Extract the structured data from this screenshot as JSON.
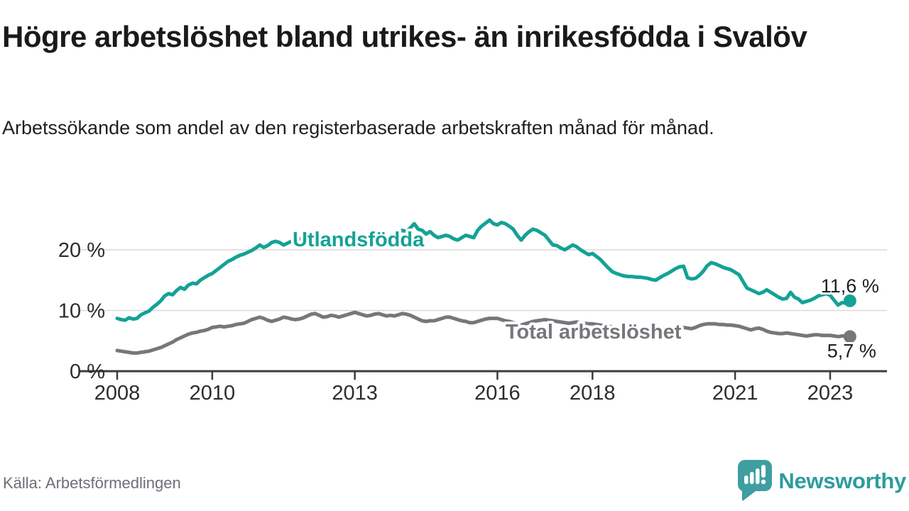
{
  "header": {
    "title": "Högre arbetslöshet bland utrikes- än inrikesfödda i Svalöv",
    "subtitle": "Arbetssökande som andel av den registerbaserade arbetskraften månad för månad."
  },
  "footer": {
    "source": "Källa: Arbetsförmedlingen",
    "logo_text": "Newsworthy",
    "logo_icon": "speech-bubble-bar-chart-icon",
    "logo_color": "#3f9ea0",
    "logo_text_color": "#2d9c9e"
  },
  "colors": {
    "series_foreign": "#14a296",
    "series_total": "#76767c",
    "axis": "#3c3c3c",
    "gridline": "#d9d9d9",
    "tick_label": "#2d2d2d",
    "value_label": "#1f1f1f",
    "halo": "#ffffff"
  },
  "chart_data": {
    "type": "line",
    "title": "Högre arbetslöshet bland utrikes- än inrikesfödda i Svalöv",
    "xlabel": "",
    "ylabel": "Arbetssökande som andel av den registerbaserade arbetskraften",
    "x_start_year": 2008,
    "x_step_months": 1,
    "x_end_approx": "2023-06",
    "xlim": [
      2007.95,
      2024.2
    ],
    "ylim": [
      0,
      27
    ],
    "grid": "horizontal-only",
    "legend_position": "inline-labels",
    "x_ticks": [
      2008,
      2010,
      2013,
      2016,
      2018,
      2021,
      2023
    ],
    "y_ticks": [
      {
        "value": 0,
        "label": "0 %"
      },
      {
        "value": 10,
        "label": "10 %"
      },
      {
        "value": 20,
        "label": "20 %"
      }
    ],
    "series": [
      {
        "name": "Utlandsfödda",
        "color": "#14a296",
        "end_label": "11,6 %",
        "inline_label": {
          "text": "Utlandsfödda",
          "x_year": 2011.69,
          "y_pct": 20.6
        },
        "values": [
          8.7,
          8.5,
          8.4,
          8.8,
          8.6,
          8.7,
          9.3,
          9.6,
          9.9,
          10.5,
          11.0,
          11.6,
          12.4,
          12.8,
          12.6,
          13.3,
          13.8,
          13.5,
          14.2,
          14.5,
          14.4,
          15.0,
          15.4,
          15.8,
          16.1,
          16.6,
          17.1,
          17.6,
          18.1,
          18.4,
          18.8,
          19.1,
          19.3,
          19.6,
          19.9,
          20.3,
          20.8,
          20.4,
          20.7,
          21.2,
          21.4,
          21.2,
          20.8,
          21.1,
          21.4,
          21.6,
          21.8,
          22.0,
          22.2,
          21.8,
          21.6,
          21.1,
          20.9,
          21.2,
          21.6,
          21.4,
          21.2,
          21.5,
          21.7,
          21.5,
          21.8,
          22.0,
          22.3,
          22.1,
          22.6,
          23.0,
          22.6,
          22.3,
          22.1,
          22.3,
          22.6,
          22.9,
          23.2,
          23.0,
          23.6,
          24.3,
          23.4,
          23.2,
          22.6,
          23.0,
          22.4,
          22.0,
          22.2,
          22.4,
          22.2,
          21.8,
          21.6,
          22.0,
          22.4,
          22.2,
          22.0,
          23.2,
          23.9,
          24.4,
          24.9,
          24.3,
          24.1,
          24.5,
          24.3,
          23.9,
          23.4,
          22.4,
          21.6,
          22.4,
          23.0,
          23.4,
          23.2,
          22.8,
          22.4,
          21.6,
          20.8,
          20.7,
          20.3,
          20.0,
          20.4,
          20.8,
          20.5,
          20.0,
          19.6,
          19.2,
          19.4,
          18.9,
          18.4,
          17.7,
          17.0,
          16.4,
          16.1,
          15.9,
          15.7,
          15.6,
          15.6,
          15.5,
          15.5,
          15.4,
          15.3,
          15.1,
          15.0,
          15.4,
          15.8,
          16.1,
          16.5,
          16.9,
          17.2,
          17.3,
          15.4,
          15.2,
          15.3,
          15.8,
          16.5,
          17.4,
          17.9,
          17.7,
          17.4,
          17.1,
          16.9,
          16.7,
          16.3,
          15.9,
          14.8,
          13.7,
          13.4,
          13.1,
          12.8,
          13.0,
          13.4,
          13.0,
          12.6,
          12.2,
          11.9,
          12.0,
          13.0,
          12.2,
          11.9,
          11.3,
          11.5,
          11.7,
          12.0,
          12.4,
          12.6,
          12.8,
          12.5,
          11.7,
          10.9,
          11.3,
          11.2,
          11.6
        ]
      },
      {
        "name": "Total arbetslöshet",
        "color": "#76767c",
        "end_label": "5,7 %",
        "inline_label": {
          "text": "Total arbetslöshet",
          "x_year": 2016.17,
          "y_pct": 5.4
        },
        "values": [
          3.4,
          3.3,
          3.2,
          3.1,
          3.0,
          3.0,
          3.1,
          3.2,
          3.3,
          3.5,
          3.7,
          3.9,
          4.2,
          4.5,
          4.8,
          5.2,
          5.5,
          5.8,
          6.1,
          6.3,
          6.4,
          6.6,
          6.7,
          6.9,
          7.2,
          7.3,
          7.4,
          7.3,
          7.4,
          7.5,
          7.7,
          7.8,
          7.9,
          8.2,
          8.5,
          8.7,
          8.9,
          8.7,
          8.4,
          8.2,
          8.4,
          8.6,
          8.9,
          8.8,
          8.6,
          8.5,
          8.6,
          8.8,
          9.1,
          9.4,
          9.5,
          9.2,
          8.9,
          9.0,
          9.2,
          9.1,
          8.9,
          9.1,
          9.3,
          9.5,
          9.7,
          9.5,
          9.3,
          9.1,
          9.2,
          9.4,
          9.5,
          9.3,
          9.1,
          9.2,
          9.1,
          9.3,
          9.5,
          9.4,
          9.2,
          8.9,
          8.6,
          8.3,
          8.2,
          8.3,
          8.3,
          8.5,
          8.7,
          8.9,
          8.9,
          8.7,
          8.5,
          8.3,
          8.2,
          8.0,
          8.0,
          8.2,
          8.4,
          8.6,
          8.7,
          8.7,
          8.7,
          8.5,
          8.3,
          8.2,
          8.0,
          7.8,
          7.6,
          7.8,
          8.0,
          8.2,
          8.3,
          8.4,
          8.5,
          8.4,
          8.3,
          8.2,
          8.1,
          8.0,
          7.9,
          8.0,
          8.1,
          8.0,
          7.9,
          7.8,
          7.8,
          7.7,
          7.6,
          7.5,
          7.4,
          7.3,
          7.2,
          7.2,
          7.1,
          7.1,
          7.0,
          7.0,
          7.0,
          7.0,
          6.9,
          6.9,
          6.8,
          6.9,
          7.0,
          7.0,
          7.1,
          7.1,
          7.2,
          7.2,
          7.1,
          7.0,
          7.2,
          7.5,
          7.7,
          7.8,
          7.8,
          7.8,
          7.7,
          7.7,
          7.6,
          7.6,
          7.5,
          7.4,
          7.2,
          7.0,
          6.8,
          7.0,
          7.1,
          6.9,
          6.6,
          6.4,
          6.3,
          6.2,
          6.2,
          6.3,
          6.2,
          6.1,
          6.0,
          5.9,
          5.8,
          5.9,
          6.0,
          6.0,
          5.9,
          5.9,
          5.9,
          5.8,
          5.7,
          5.8,
          5.8,
          5.7
        ]
      }
    ]
  }
}
